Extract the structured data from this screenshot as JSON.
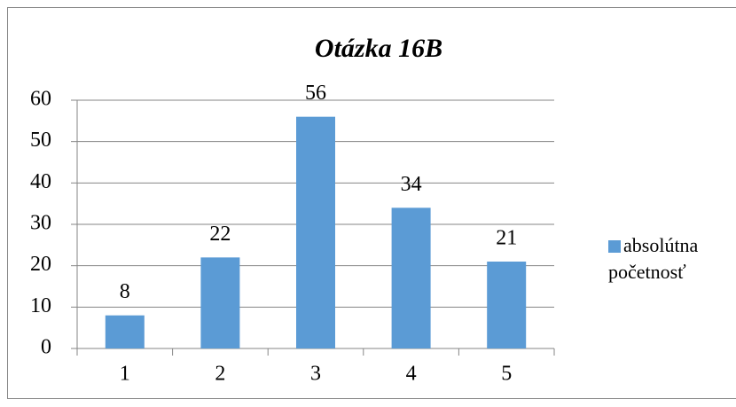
{
  "chart_data": {
    "type": "bar",
    "title": "Otázka 16B",
    "categories": [
      "1",
      "2",
      "3",
      "4",
      "5"
    ],
    "series": [
      {
        "name": "absolútna početnosť",
        "color": "#5b9bd5",
        "values": [
          8,
          22,
          56,
          34,
          21
        ]
      }
    ],
    "ylim": [
      0,
      60
    ],
    "yticks": [
      0,
      10,
      20,
      30,
      40,
      50,
      60
    ],
    "grid": true,
    "legend": "right"
  }
}
